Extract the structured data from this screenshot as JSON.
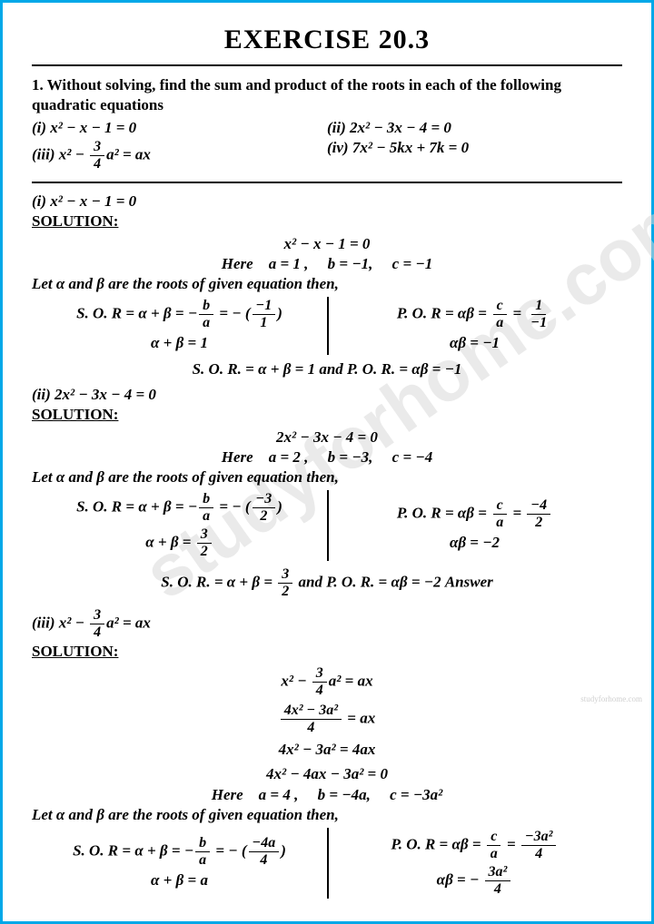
{
  "colors": {
    "border": "#00a8e8",
    "text": "#000000",
    "bg": "#ffffff",
    "wm": "#d9d9d9"
  },
  "typography": {
    "title_fontsize": 30,
    "body_fontsize": 17,
    "title_weight": 900,
    "body_weight": 700
  },
  "watermark": {
    "main": "studyforhome.com",
    "tiny": "studyforhome.com"
  },
  "title": "EXERCISE 20.3",
  "question": {
    "intro": "1. Without solving, find the sum and product of the roots in each of the following quadratic equations",
    "i": "(i) x² − x − 1  =  0",
    "ii": "(ii) 2x² − 3x − 4  =  0",
    "iii_pre": "(iii) x² − ",
    "iii_frac_num": "3",
    "iii_frac_den": "4",
    "iii_post": "a²  =  ax",
    "iv": "(iv) 7x² − 5kx + 7k  =  0"
  },
  "p1": {
    "heading": "(i) x² − x − 1  =  0",
    "sol": "SOLUTION:",
    "eq": "x² − x − 1  =  0",
    "here_pre": "Here",
    "a": "a = 1 ,",
    "b": "b = −1,",
    "c": "c = −1",
    "let": "Let α and β are the roots of given equation then,",
    "sor_l1_pre": "S. O. R = α + β = −",
    "sor_l1_num": "b",
    "sor_l1_den": "a",
    "sor_l1_mid": " = − (",
    "sor_l1_pnum": "−1",
    "sor_l1_pden": "1",
    "sor_l1_post": ")",
    "sor_l2": "α + β = 1",
    "por_l1_pre": "P. O. R = αβ = ",
    "por_l1_num": "c",
    "por_l1_den": "a",
    "por_l1_mid": " = ",
    "por_l1_rnum": "1",
    "por_l1_rden": "−1",
    "por_l2": "αβ = −1",
    "ans": "S. O. R. = α + β = 1  and  P. O. R. = αβ = −1"
  },
  "p2": {
    "heading": "(ii) 2x² − 3x − 4  =  0",
    "sol": "SOLUTION:",
    "eq": "2x² − 3x − 4  =  0",
    "here_pre": "Here",
    "a": "a = 2 ,",
    "b": "b = −3,",
    "c": "c = −4",
    "let": "Let α and β are the roots of given equation then,",
    "sor_l1_pre": "S. O. R = α + β = −",
    "sor_l1_num": "b",
    "sor_l1_den": "a",
    "sor_l1_mid": " = − (",
    "sor_l1_pnum": "−3",
    "sor_l1_pden": "2",
    "sor_l1_post": ")",
    "sor_l2_pre": "α + β = ",
    "sor_l2_num": "3",
    "sor_l2_den": "2",
    "por_l1_pre": "P. O. R = αβ = ",
    "por_l1_num": "c",
    "por_l1_den": "a",
    "por_l1_mid": " = ",
    "por_l1_rnum": "−4",
    "por_l1_rden": "2",
    "por_l2": "αβ = −2",
    "ans_pre": "S. O. R. = α + β = ",
    "ans_num": "3",
    "ans_den": "2",
    "ans_post": "  and  P. O. R. = αβ = −2  Answer"
  },
  "p3": {
    "heading_pre": "(iii) x² − ",
    "heading_num": "3",
    "heading_den": "4",
    "heading_post": "a²  =  ax",
    "sol": "SOLUTION:",
    "w1_pre": "x² − ",
    "w1_num": "3",
    "w1_den": "4",
    "w1_post": "a²  =  ax",
    "w2_num": "4x² − 3a²",
    "w2_den": "4",
    "w2_post": "  =  ax",
    "w3": "4x² − 3a²  =  4ax",
    "w4": "4x² − 4ax − 3a²  =  0",
    "here_pre": "Here",
    "a": "a = 4 ,",
    "b": "b = −4a,",
    "c": "c = −3a²",
    "let": "Let α and β are the roots of given equation then,",
    "sor_l1_pre": "S. O. R = α + β = −",
    "sor_l1_num": "b",
    "sor_l1_den": "a",
    "sor_l1_mid": " = − (",
    "sor_l1_pnum": "−4a",
    "sor_l1_pden": "4",
    "sor_l1_post": ")",
    "sor_l2": "α + β = a",
    "por_l1_pre": "P. O. R = αβ = ",
    "por_l1_num": "c",
    "por_l1_den": "a",
    "por_l1_mid": " = ",
    "por_l1_rnum": "−3a²",
    "por_l1_rden": "4",
    "por_l2_pre": "αβ = − ",
    "por_l2_num": "3a²",
    "por_l2_den": "4"
  }
}
